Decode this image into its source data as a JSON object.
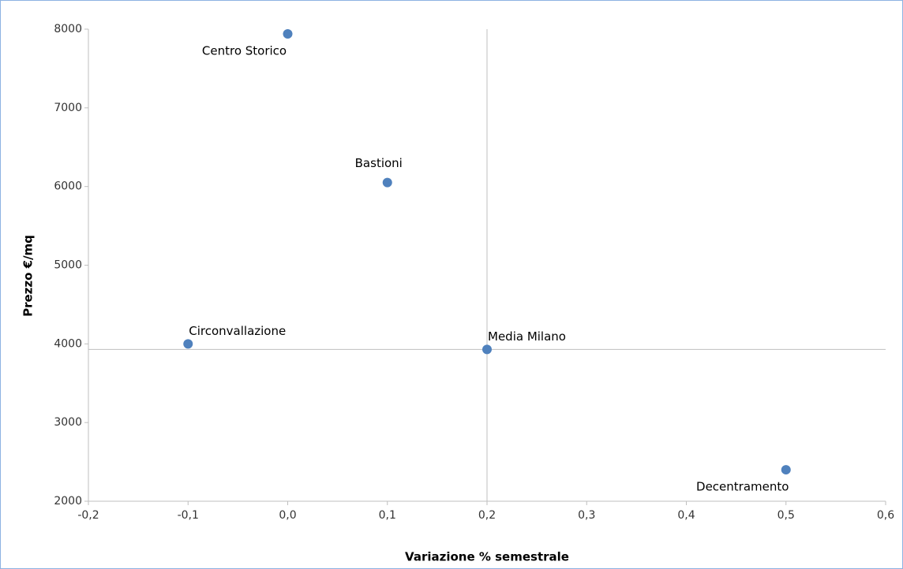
{
  "chart_data": {
    "type": "scatter",
    "x_label": "Variazione % semestrale",
    "y_label": "Prezzo €/mq",
    "color": "#4f81bd",
    "points": [
      {
        "label": "Centro Storico",
        "x": 0.0,
        "y": 7940,
        "label_position": "below-left"
      },
      {
        "label": "Bastioni",
        "x": 0.1,
        "y": 6050,
        "label_position": "above"
      },
      {
        "label": "Circonvallazione",
        "x": -0.1,
        "y": 4000,
        "label_position": "above-right"
      },
      {
        "label": "Media Milano",
        "x": 0.2,
        "y": 3930,
        "label_position": "above-right"
      },
      {
        "label": "Decentramento",
        "x": 0.5,
        "y": 2400,
        "label_position": "below-left"
      }
    ],
    "reference_lines": {
      "x": 0.2,
      "y": 3930
    },
    "xlim": [
      -0.2,
      0.6
    ],
    "xticks": [
      {
        "value": -0.2,
        "label": "-0,2"
      },
      {
        "value": -0.1,
        "label": "-0,1"
      },
      {
        "value": 0.0,
        "label": "0,0"
      },
      {
        "value": 0.1,
        "label": "0,1"
      },
      {
        "value": 0.2,
        "label": "0,2"
      },
      {
        "value": 0.3,
        "label": "0,3"
      },
      {
        "value": 0.4,
        "label": "0,4"
      },
      {
        "value": 0.5,
        "label": "0,5"
      },
      {
        "value": 0.6,
        "label": "0,6"
      }
    ],
    "ylim": [
      2000,
      8000
    ],
    "yticks": [
      2000,
      3000,
      4000,
      5000,
      6000,
      7000,
      8000
    ],
    "grid": false
  }
}
